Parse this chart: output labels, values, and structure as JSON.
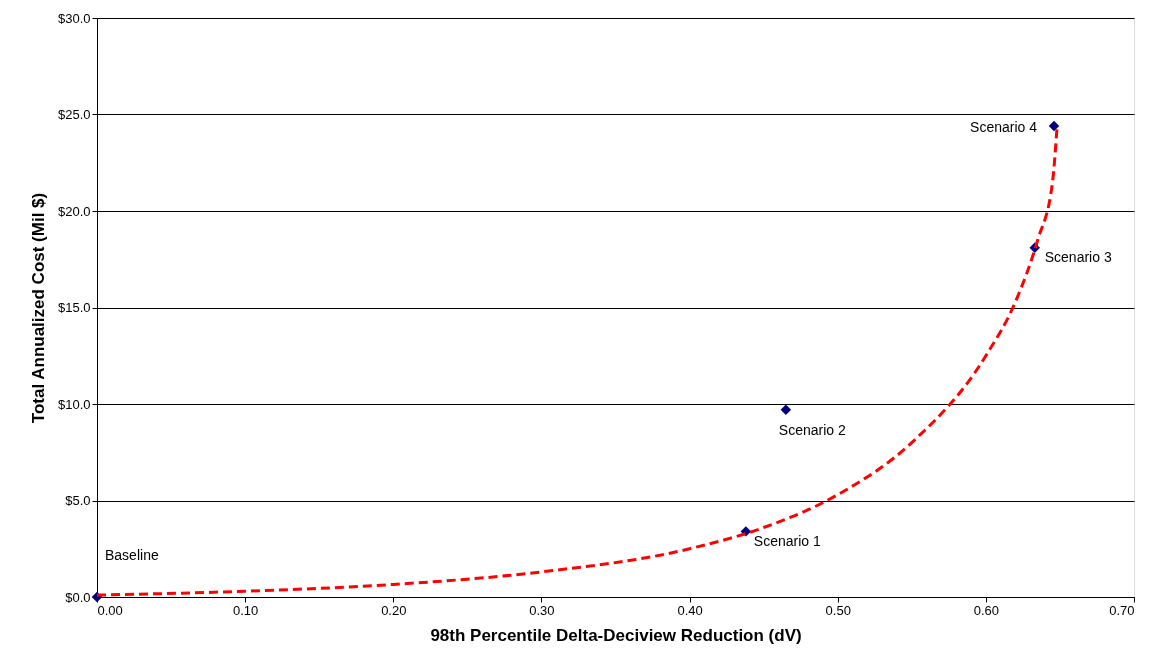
{
  "chart_data": {
    "type": "scatter",
    "xlabel": "98th Percentile Delta-Deciview Reduction (dV)",
    "ylabel": "Total Annualized Cost (Mil $)",
    "xlim": [
      0,
      0.7
    ],
    "ylim": [
      0,
      30
    ],
    "xticks": [
      {
        "value": 0,
        "label": "0.00"
      },
      {
        "value": 0.1,
        "label": "0.10"
      },
      {
        "value": 0.2,
        "label": "0.20"
      },
      {
        "value": 0.3,
        "label": "0.30"
      },
      {
        "value": 0.4,
        "label": "0.40"
      },
      {
        "value": 0.5,
        "label": "0.50"
      },
      {
        "value": 0.6,
        "label": "0.60"
      },
      {
        "value": 0.7,
        "label": "0.70"
      }
    ],
    "yticks": [
      {
        "value": 0,
        "label": "$0.0"
      },
      {
        "value": 5,
        "label": "$5.0"
      },
      {
        "value": 10,
        "label": "$10.0"
      },
      {
        "value": 15,
        "label": "$15.0"
      },
      {
        "value": 20,
        "label": "$20.0"
      },
      {
        "value": 25,
        "label": "$25.0"
      },
      {
        "value": 30,
        "label": "$30.0"
      }
    ],
    "grid": "y",
    "series": [
      {
        "color": "#000080",
        "marker": "diamond",
        "x": [
          0,
          0.438,
          0.465,
          0.633,
          0.646
        ],
        "values": [
          0,
          3.4,
          9.7,
          18.1,
          24.4
        ]
      },
      {
        "type": "line",
        "color": "#ff0000",
        "line_style": "dashed",
        "marker": "none",
        "x": [
          0,
          0.1,
          0.2,
          0.3,
          0.4,
          0.45,
          0.5,
          0.55,
          0.6,
          0.62,
          0.635,
          0.645,
          0.648
        ],
        "values": [
          0.1,
          0.3,
          0.65,
          1.3,
          2.5,
          3.6,
          5.3,
          8,
          12.5,
          15.3,
          18.5,
          21.5,
          24.3
        ]
      }
    ],
    "annotations": [
      {
        "text": "Baseline",
        "x": 0,
        "y": 0
      },
      {
        "text": "Scenario 1",
        "x": 0.438,
        "y": 3.4
      },
      {
        "text": "Scenario 2",
        "x": 0.465,
        "y": 9.7
      },
      {
        "text": "Scenario 3",
        "x": 0.633,
        "y": 18.1
      },
      {
        "text": "Scenario 4",
        "x": 0.646,
        "y": 24.4
      }
    ]
  }
}
